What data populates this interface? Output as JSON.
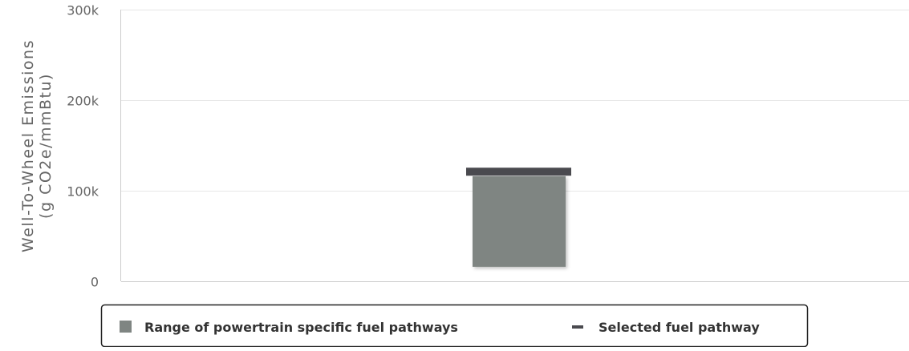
{
  "chart_data": {
    "type": "bar",
    "ylabel_lines": [
      "Well-To-Wheel Emissions",
      "(g CO2e/mmBtu)"
    ],
    "ylim": [
      0,
      300000
    ],
    "yticks": [
      {
        "value": 0,
        "label": "0"
      },
      {
        "value": 100000,
        "label": "100k"
      },
      {
        "value": 200000,
        "label": "200k"
      },
      {
        "value": 300000,
        "label": "300k"
      }
    ],
    "grid": true,
    "range": {
      "name": "Range of powertrain specific fuel pathways",
      "low": 16000,
      "high": 116000,
      "color": "#7f8582"
    },
    "selected": {
      "name": "Selected fuel pathway",
      "value": 121000,
      "color": "#4a4a4f"
    },
    "legend_position": "bottom-center"
  }
}
